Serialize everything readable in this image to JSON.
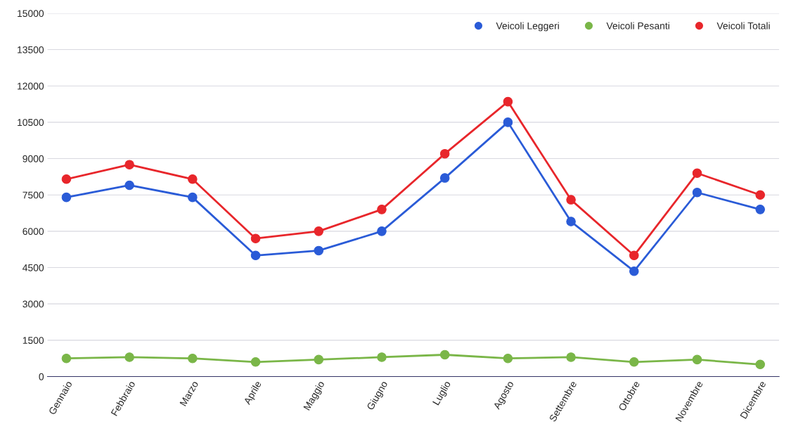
{
  "chart_data": {
    "type": "line",
    "categories": [
      "Gennaio",
      "Febbraio",
      "Marzo",
      "Aprile",
      "Maggio",
      "Giugno",
      "Luglio",
      "Agosto",
      "Settembre",
      "Ottobre",
      "Novembre",
      "Dicembre"
    ],
    "series": [
      {
        "name": "Veicoli Leggeri",
        "color": "#2a5bd7",
        "values": [
          7400,
          7900,
          7400,
          5000,
          5200,
          6000,
          8200,
          10500,
          6400,
          4350,
          7600,
          6900
        ]
      },
      {
        "name": "Veicoli Pesanti",
        "color": "#7ab648",
        "values": [
          750,
          800,
          750,
          600,
          700,
          800,
          900,
          750,
          800,
          600,
          700,
          500
        ]
      },
      {
        "name": "Veicoli Totali",
        "color": "#e8262b",
        "values": [
          8150,
          8750,
          8150,
          5700,
          6000,
          6900,
          9200,
          11350,
          7300,
          5000,
          8400,
          7500
        ]
      }
    ],
    "ylim": [
      0,
      15000
    ],
    "yticks": [
      0,
      1500,
      3000,
      4500,
      6000,
      7500,
      9000,
      10500,
      12000,
      13500,
      15000
    ],
    "grid": "y",
    "legend": "top right",
    "marker": "circle",
    "line_style": "solid"
  }
}
